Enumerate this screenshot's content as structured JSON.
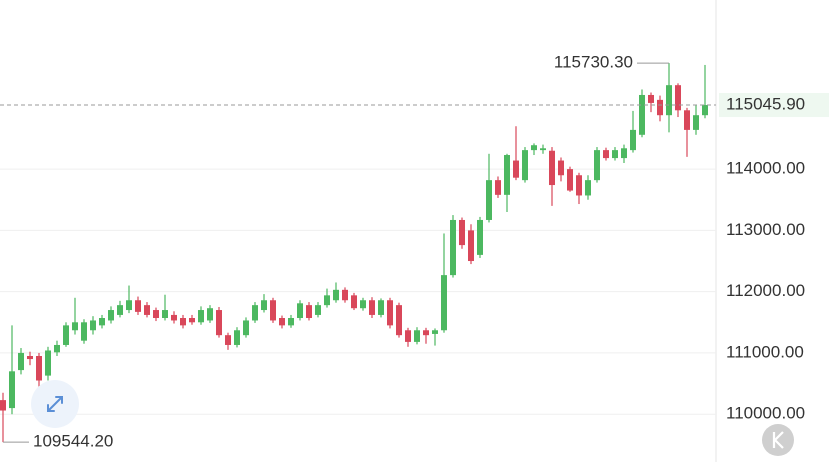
{
  "chart_data": {
    "type": "candlestick",
    "up_color": "#4cb860",
    "down_color": "#d9475a",
    "grid": true,
    "ylim": [
      109220,
      116760
    ],
    "yticks": [
      {
        "value": 110000,
        "label": "110000.00"
      },
      {
        "value": 111000,
        "label": "111000.00"
      },
      {
        "value": 112000,
        "label": "112000.00"
      },
      {
        "value": 113000,
        "label": "113000.00"
      },
      {
        "value": 114000,
        "label": "114000.00"
      }
    ],
    "high_label": {
      "value": 115730.3,
      "label": "115730.30"
    },
    "low_label": {
      "value": 109544.2,
      "label": "109544.20"
    },
    "last_price": {
      "value": 115045.9,
      "label": "115045.90"
    },
    "open": [
      110230,
      110100,
      110720,
      110950,
      110950,
      110630,
      111010,
      111130,
      111370,
      111200,
      111370,
      111450,
      111530,
      111620,
      111700,
      111860,
      111780,
      111700,
      111570,
      111620,
      111570,
      111570,
      111500,
      111530,
      111700,
      111290,
      111130,
      111290,
      111530,
      111700,
      111860,
      111570,
      111450,
      111570,
      111780,
      111620,
      111780,
      111860,
      112030,
      111940,
      111730,
      111860,
      111620,
      111860,
      111780,
      111370,
      111180,
      111370,
      111310,
      111370,
      112270,
      113170,
      113000,
      112600,
      113170,
      113820,
      113580,
      114140,
      113820,
      114310,
      114310,
      114300,
      114140,
      114000,
      113900,
      113570,
      113820,
      114310,
      114180,
      114180,
      114310,
      114560,
      115210,
      115130,
      114880,
      115370,
      114960,
      114640,
      114880
    ],
    "high": [
      110350,
      111450,
      111080,
      111020,
      111000,
      111100,
      111200,
      111500,
      111900,
      111550,
      111600,
      111620,
      111760,
      111850,
      112100,
      111920,
      111830,
      111740,
      111950,
      111680,
      111620,
      111620,
      111760,
      111780,
      111750,
      111330,
      111420,
      111580,
      111830,
      111960,
      111900,
      111610,
      111620,
      111860,
      111830,
      111830,
      112050,
      112150,
      112070,
      111980,
      111900,
      111910,
      111890,
      111900,
      111820,
      111410,
      111420,
      111410,
      111400,
      112950,
      113250,
      113210,
      113100,
      113220,
      114250,
      113880,
      114250,
      114700,
      114360,
      114420,
      114400,
      114360,
      114190,
      114040,
      113940,
      113900,
      114360,
      114350,
      114360,
      114400,
      114950,
      115300,
      115250,
      115200,
      115730.3,
      115400,
      115000,
      115050,
      115700
    ],
    "low": [
      109544.2,
      110000,
      110650,
      110800,
      110450,
      110550,
      110950,
      111100,
      111300,
      111150,
      111300,
      111400,
      111480,
      111580,
      111650,
      111620,
      111580,
      111520,
      111530,
      111480,
      111400,
      111460,
      111460,
      111490,
      111250,
      111050,
      111090,
      111250,
      111490,
      111660,
      111490,
      111400,
      111410,
      111530,
      111530,
      111580,
      111740,
      111820,
      111820,
      111700,
      111690,
      111570,
      111580,
      111400,
      111250,
      111100,
      111140,
      111150,
      111120,
      111330,
      112230,
      112700,
      112450,
      112550,
      113130,
      113530,
      113300,
      113820,
      113780,
      114230,
      114250,
      113400,
      113800,
      113630,
      113430,
      113500,
      113780,
      114140,
      114140,
      114100,
      114270,
      114520,
      114930,
      114780,
      114600,
      114850,
      114200,
      114560,
      114830
    ],
    "close": [
      110060,
      110700,
      111000,
      110900,
      110550,
      111040,
      111130,
      111450,
      111500,
      111500,
      111530,
      111570,
      111700,
      111780,
      111860,
      111670,
      111620,
      111570,
      111700,
      111530,
      111450,
      111500,
      111700,
      111730,
      111290,
      111130,
      111370,
      111530,
      111780,
      111860,
      111530,
      111450,
      111570,
      111810,
      111570,
      111780,
      111940,
      112030,
      111860,
      111730,
      111860,
      111620,
      111860,
      111450,
      111290,
      111180,
      111370,
      111290,
      111370,
      112270,
      113170,
      112760,
      112500,
      113170,
      113820,
      113580,
      114230,
      113860,
      114310,
      114390,
      114340,
      113740,
      113900,
      113650,
      113570,
      113820,
      114310,
      114180,
      114310,
      114340,
      114640,
      115210,
      115080,
      114880,
      115370,
      114960,
      114640,
      114880,
      115045.9
    ]
  }
}
